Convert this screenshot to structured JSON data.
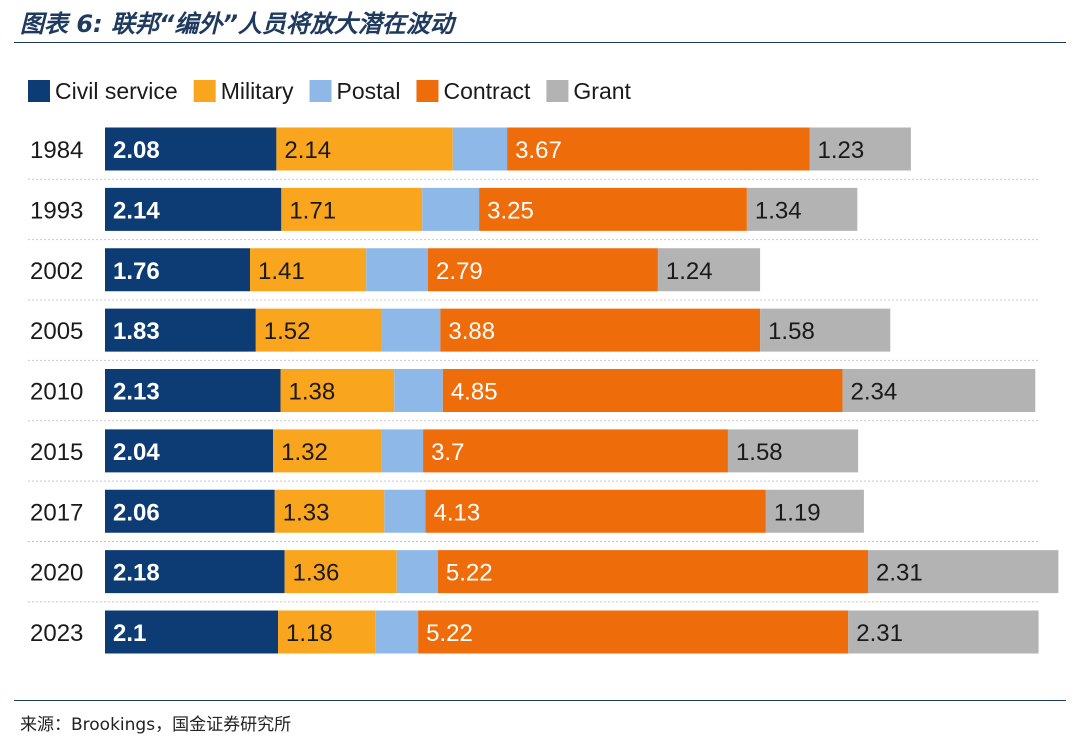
{
  "page": {
    "title": "图表 6: 联邦“编外”人员将放大潜在波动",
    "source": "来源：Brookings，国金证券研究所"
  },
  "colors": {
    "civil_service": "#0d3b73",
    "military": "#f9a51e",
    "postal": "#8db8e8",
    "contract": "#ef6c0b",
    "grant": "#b3b3b3",
    "title": "#1f3a5f"
  },
  "chart_data": {
    "type": "bar",
    "orientation": "horizontal",
    "stacked": true,
    "categories": [
      "1984",
      "1993",
      "2002",
      "2005",
      "2010",
      "2015",
      "2017",
      "2020",
      "2023"
    ],
    "series": [
      {
        "name": "Civil service",
        "color": "#0d3b73",
        "label_color": "#ffffff",
        "values": [
          2.08,
          2.14,
          1.76,
          1.83,
          2.13,
          2.04,
          2.06,
          2.18,
          2.1
        ],
        "labels": [
          "2.08",
          "2.14",
          "1.76",
          "1.83",
          "2.13",
          "2.04",
          "2.06",
          "2.18",
          "2.1"
        ]
      },
      {
        "name": "Military",
        "color": "#f9a51e",
        "label_color": "#1a1a1a",
        "values": [
          2.14,
          1.71,
          1.41,
          1.52,
          1.38,
          1.32,
          1.33,
          1.36,
          1.18
        ],
        "labels": [
          "2.14",
          "1.71",
          "1.41",
          "1.52",
          "1.38",
          "1.32",
          "1.33",
          "1.36",
          "1.18"
        ]
      },
      {
        "name": "Postal",
        "color": "#8db8e8",
        "label_color": "#1a1a1a",
        "values": [
          0.66,
          0.69,
          0.75,
          0.72,
          0.59,
          0.5,
          0.5,
          0.5,
          0.52
        ],
        "labels": [
          "",
          "",
          "",
          "",
          "",
          "",
          "",
          "",
          ""
        ]
      },
      {
        "name": "Contract",
        "color": "#ef6c0b",
        "label_color": "#ffffff",
        "values": [
          3.67,
          3.25,
          2.79,
          3.88,
          4.85,
          3.7,
          4.13,
          5.22,
          5.22
        ],
        "labels": [
          "3.67",
          "3.25",
          "2.79",
          "3.88",
          "4.85",
          "3.7",
          "4.13",
          "5.22",
          "5.22"
        ]
      },
      {
        "name": "Grant",
        "color": "#b3b3b3",
        "label_color": "#1a1a1a",
        "values": [
          1.23,
          1.34,
          1.24,
          1.58,
          2.34,
          1.58,
          1.19,
          2.31,
          2.31
        ],
        "labels": [
          "1.23",
          "1.34",
          "1.24",
          "1.58",
          "2.34",
          "1.58",
          "1.19",
          "2.31",
          "2.31"
        ]
      }
    ],
    "legend": "top-left",
    "grid": false
  }
}
